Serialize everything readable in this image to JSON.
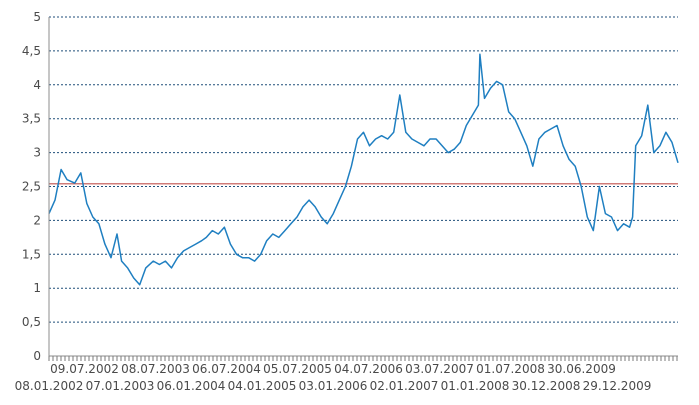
{
  "chart_data": {
    "type": "line",
    "title": "",
    "xlabel": "",
    "ylabel": "",
    "ylim": [
      0,
      5
    ],
    "y_ticks": [
      "0",
      "0,5",
      "1",
      "1,5",
      "2",
      "2,5",
      "3",
      "3,5",
      "4",
      "4,5",
      "5"
    ],
    "x_range": [
      "2002-01-08",
      "2009-12-29"
    ],
    "x_ticks_upper": [
      "09.07.2002",
      "08.07.2003",
      "06.07.2004",
      "05.07.2005",
      "04.07.2006",
      "03.07.2007",
      "01.07.2008",
      "30.06.2009"
    ],
    "x_ticks_lower": [
      "08.01.2002",
      "07.01.2003",
      "06.01.2004",
      "04.01.2005",
      "03.01.2006",
      "02.01.2007",
      "01.01.2008",
      "30.12.2008",
      "29.12.2009"
    ],
    "grid": true,
    "legend": "none",
    "reference_line": {
      "value": 2.54,
      "color": "#c0504d"
    },
    "series": [
      {
        "color": "#1f7fc1",
        "x": [
          "2002-01-08",
          "2002-02-05",
          "2002-03-05",
          "2002-04-02",
          "2002-05-07",
          "2002-06-04",
          "2002-07-02",
          "2002-07-30",
          "2002-08-27",
          "2002-09-24",
          "2002-10-22",
          "2002-11-19",
          "2002-12-10",
          "2003-01-07",
          "2003-02-04",
          "2003-03-04",
          "2003-04-01",
          "2003-05-06",
          "2003-06-03",
          "2003-07-01",
          "2003-07-29",
          "2003-08-26",
          "2003-09-23",
          "2003-10-21",
          "2003-11-18",
          "2003-12-16",
          "2004-01-06",
          "2004-02-03",
          "2004-03-02",
          "2004-03-30",
          "2004-04-27",
          "2004-05-25",
          "2004-06-22",
          "2004-07-20",
          "2004-08-17",
          "2004-09-14",
          "2004-10-12",
          "2004-11-09",
          "2004-12-07",
          "2005-01-04",
          "2005-02-01",
          "2005-03-01",
          "2005-03-29",
          "2005-04-26",
          "2005-05-24",
          "2005-06-21",
          "2005-07-19",
          "2005-08-16",
          "2005-09-13",
          "2005-10-11",
          "2005-11-08",
          "2005-12-06",
          "2006-01-03",
          "2006-01-31",
          "2006-02-28",
          "2006-03-28",
          "2006-04-25",
          "2006-05-23",
          "2006-06-20",
          "2006-07-18",
          "2006-08-15",
          "2006-09-12",
          "2006-10-10",
          "2006-11-07",
          "2006-12-05",
          "2007-01-02",
          "2007-01-30",
          "2007-02-27",
          "2007-03-27",
          "2007-04-24",
          "2007-05-22",
          "2007-06-19",
          "2007-06-26",
          "2007-07-17",
          "2007-08-14",
          "2007-09-11",
          "2007-10-09",
          "2007-11-06",
          "2007-12-04",
          "2008-01-01",
          "2008-01-29",
          "2008-02-26",
          "2008-03-25",
          "2008-04-22",
          "2008-05-20",
          "2008-06-17",
          "2008-07-15",
          "2008-08-12",
          "2008-09-09",
          "2008-10-07",
          "2008-11-04",
          "2008-12-02",
          "2008-12-30",
          "2009-01-27",
          "2009-02-24",
          "2009-03-24",
          "2009-04-21",
          "2009-05-19",
          "2009-06-02",
          "2009-06-16",
          "2009-07-14",
          "2009-08-11",
          "2009-09-08",
          "2009-10-06",
          "2009-11-03",
          "2009-12-01",
          "2009-12-29"
        ],
        "y": [
          2.1,
          2.3,
          2.75,
          2.6,
          2.55,
          2.7,
          2.25,
          2.05,
          1.95,
          1.65,
          1.45,
          1.8,
          1.4,
          1.3,
          1.15,
          1.05,
          1.3,
          1.4,
          1.35,
          1.4,
          1.3,
          1.45,
          1.55,
          1.6,
          1.65,
          1.7,
          1.75,
          1.85,
          1.8,
          1.9,
          1.65,
          1.5,
          1.45,
          1.45,
          1.4,
          1.5,
          1.7,
          1.8,
          1.75,
          1.85,
          1.95,
          2.05,
          2.2,
          2.3,
          2.2,
          2.05,
          1.95,
          2.1,
          2.3,
          2.5,
          2.8,
          3.2,
          3.3,
          3.1,
          3.2,
          3.25,
          3.2,
          3.3,
          3.85,
          3.3,
          3.2,
          3.15,
          3.1,
          3.2,
          3.2,
          3.1,
          3.0,
          3.05,
          3.15,
          3.4,
          3.55,
          3.7,
          4.45,
          3.8,
          3.95,
          4.05,
          4.0,
          3.6,
          3.5,
          3.3,
          3.1,
          2.8,
          3.2,
          3.3,
          3.35,
          3.4,
          3.1,
          2.9,
          2.8,
          2.5,
          2.05,
          1.85,
          2.5,
          2.1,
          2.05,
          1.85,
          1.95,
          1.9,
          2.05,
          3.1,
          3.25,
          3.7,
          3.0,
          3.1,
          3.3,
          3.15,
          2.85
        ]
      }
    ]
  }
}
